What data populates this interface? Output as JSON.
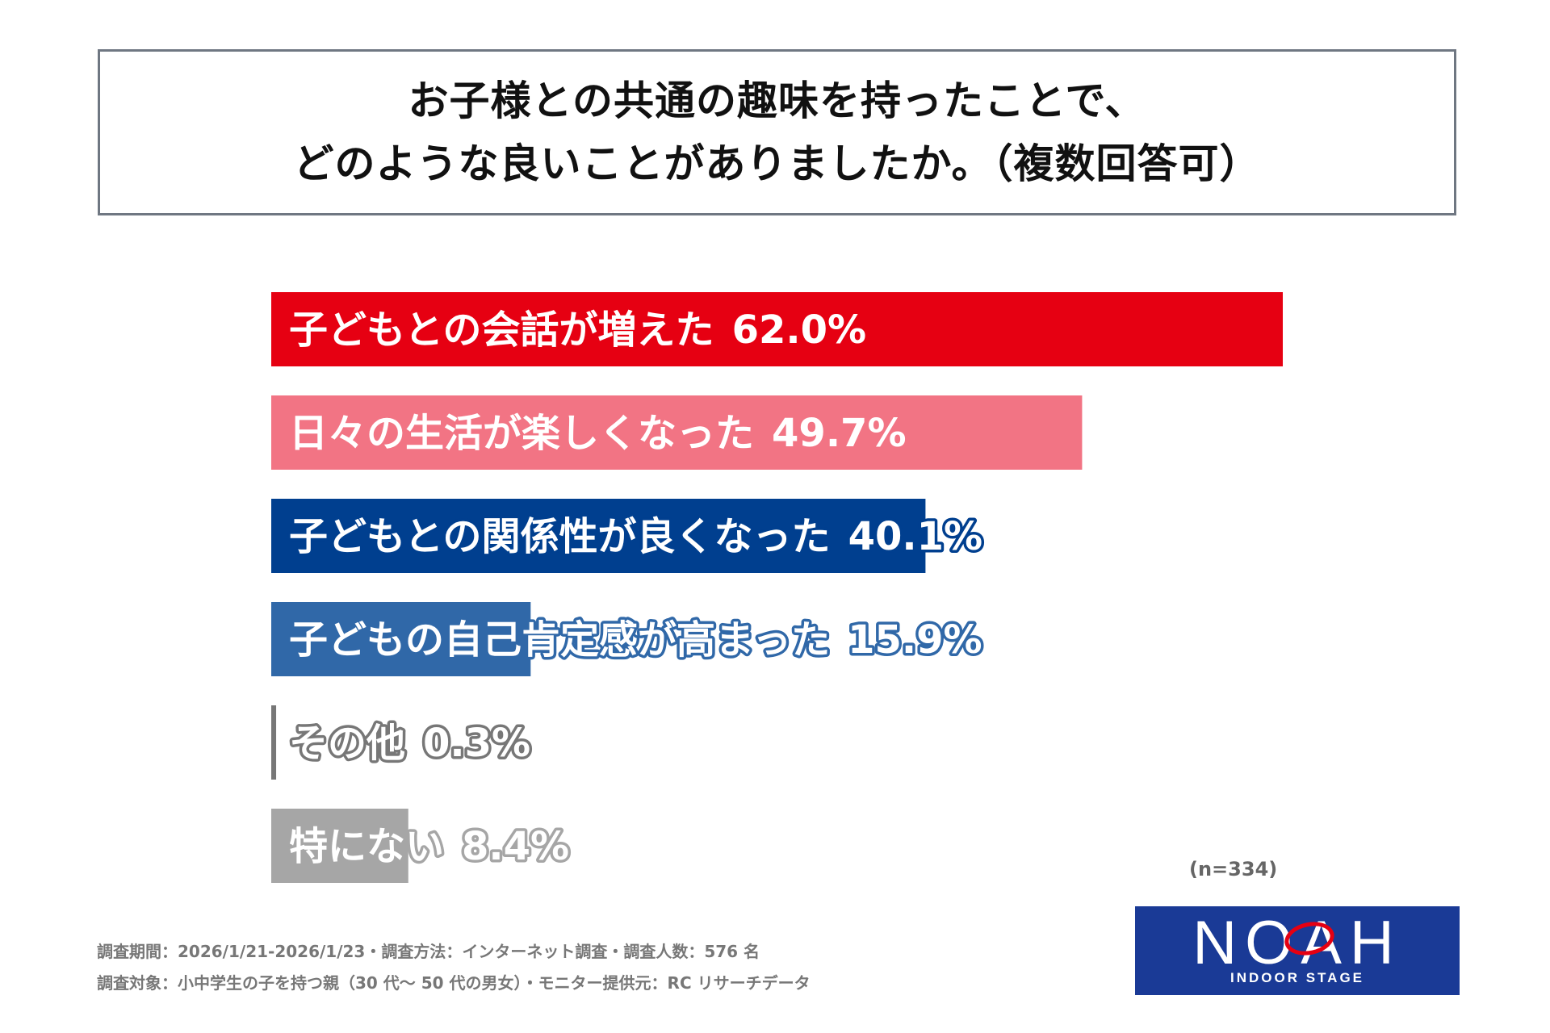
{
  "title": {
    "line1": "お子様との共通の趣味を持ったことで、",
    "line2": "どのような良いことがありましたか。（複数回答可）"
  },
  "chart_data": {
    "type": "bar",
    "orientation": "horizontal",
    "categories": [
      "子どもとの会話が増えた",
      "日々の生活が楽しくなった",
      "子どもとの関係性が良くなった",
      "子どもの自己肯定感が高まった",
      "その他",
      "特にない"
    ],
    "values": [
      62.0,
      49.7,
      40.1,
      15.9,
      0.3,
      8.4
    ],
    "value_labels": [
      "62.0%",
      "49.7%",
      "40.1%",
      "15.9%",
      "0.3%",
      "8.4%"
    ],
    "colors": [
      "#e60012",
      "#f27484",
      "#003f8f",
      "#3068a8",
      "#777777",
      "#a6a6a6"
    ],
    "xlim": [
      0,
      62.0
    ],
    "grid": false,
    "title": "",
    "xlabel": "",
    "ylabel": ""
  },
  "sample_size": "(n=334)",
  "footnotes": [
    "調査期間：2026/1/21-2026/1/23・調査方法：インターネット調査・調査人数：576 名",
    "調査対象：小中学生の子を持つ親（30 代～ 50 代の男女）・モニター提供元：RC リサーチデータ"
  ],
  "logo": {
    "word": "NOAH",
    "sub": "INDOOR STAGE",
    "bg_color": "#1a3a96",
    "accent_color": "#e60012"
  }
}
